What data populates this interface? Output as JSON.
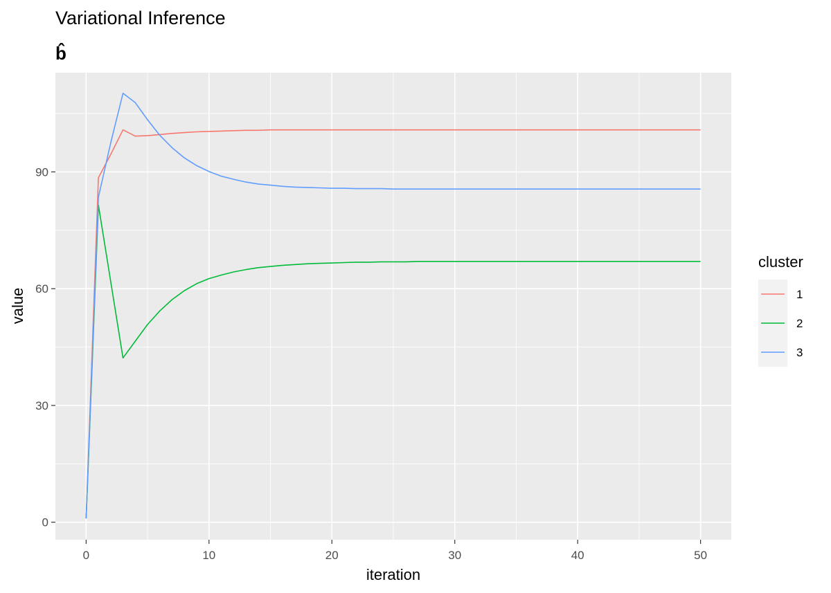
{
  "chart_data": {
    "type": "line",
    "title": "Variational Inference",
    "subtitle": "b̂",
    "xlabel": "iteration",
    "ylabel": "value",
    "xlim": [
      -2.5,
      52.5
    ],
    "ylim": [
      -4.5,
      115.5
    ],
    "x_ticks": [
      0,
      10,
      20,
      30,
      40,
      50
    ],
    "y_ticks": [
      0,
      30,
      60,
      90
    ],
    "x_tick_labels": [
      "0",
      "10",
      "20",
      "30",
      "40",
      "50"
    ],
    "y_tick_labels": [
      "0",
      "30",
      "60",
      "90"
    ],
    "grid": true,
    "legend": {
      "title": "cluster",
      "placement": "right"
    },
    "series": [
      {
        "name": "1",
        "color": "#F8766D",
        "x": [
          0,
          1,
          2,
          3,
          4,
          5,
          6,
          7,
          8,
          9,
          10,
          11,
          12,
          13,
          14,
          15,
          16,
          17,
          18,
          19,
          20,
          21,
          22,
          23,
          24,
          25,
          26,
          27,
          28,
          29,
          30,
          31,
          32,
          33,
          34,
          35,
          36,
          37,
          38,
          39,
          40,
          41,
          42,
          43,
          44,
          45,
          46,
          47,
          48,
          49,
          50
        ],
        "values": [
          1,
          88.5,
          94.5,
          100.8,
          99.2,
          99.3,
          99.6,
          99.9,
          100.1,
          100.3,
          100.4,
          100.5,
          100.6,
          100.7,
          100.7,
          100.8,
          100.8,
          100.8,
          100.8,
          100.8,
          100.8,
          100.8,
          100.8,
          100.8,
          100.8,
          100.8,
          100.8,
          100.8,
          100.8,
          100.8,
          100.8,
          100.8,
          100.8,
          100.8,
          100.8,
          100.8,
          100.8,
          100.8,
          100.8,
          100.8,
          100.8,
          100.8,
          100.8,
          100.8,
          100.8,
          100.8,
          100.8,
          100.8,
          100.8,
          100.8,
          100.8
        ]
      },
      {
        "name": "2",
        "color": "#00BA38",
        "x": [
          0,
          1,
          2,
          3,
          4,
          5,
          6,
          7,
          8,
          9,
          10,
          11,
          12,
          13,
          14,
          15,
          16,
          17,
          18,
          19,
          20,
          21,
          22,
          23,
          24,
          25,
          26,
          27,
          28,
          29,
          30,
          31,
          32,
          33,
          34,
          35,
          36,
          37,
          38,
          39,
          40,
          41,
          42,
          43,
          44,
          45,
          46,
          47,
          48,
          49,
          50
        ],
        "values": [
          1,
          81.5,
          61.8,
          42.2,
          46.5,
          50.8,
          54.3,
          57.2,
          59.5,
          61.3,
          62.6,
          63.5,
          64.3,
          64.9,
          65.4,
          65.7,
          66.0,
          66.2,
          66.4,
          66.5,
          66.6,
          66.7,
          66.8,
          66.8,
          66.9,
          66.9,
          66.9,
          67.0,
          67.0,
          67.0,
          67.0,
          67.0,
          67.0,
          67.0,
          67.0,
          67.0,
          67.0,
          67.0,
          67.0,
          67.0,
          67.0,
          67.0,
          67.0,
          67.0,
          67.0,
          67.0,
          67.0,
          67.0,
          67.0,
          67.0,
          67.0
        ]
      },
      {
        "name": "3",
        "color": "#619CFF",
        "x": [
          0,
          1,
          2,
          3,
          4,
          5,
          6,
          7,
          8,
          9,
          10,
          11,
          12,
          13,
          14,
          15,
          16,
          17,
          18,
          19,
          20,
          21,
          22,
          23,
          24,
          25,
          26,
          27,
          28,
          29,
          30,
          31,
          32,
          33,
          34,
          35,
          36,
          37,
          38,
          39,
          40,
          41,
          42,
          43,
          44,
          45,
          46,
          47,
          48,
          49,
          50
        ],
        "values": [
          1,
          83.5,
          97.5,
          110.2,
          107.8,
          103.4,
          99.4,
          96.2,
          93.6,
          91.6,
          90.1,
          88.9,
          88.1,
          87.4,
          86.9,
          86.6,
          86.3,
          86.1,
          86.0,
          85.9,
          85.8,
          85.8,
          85.7,
          85.7,
          85.7,
          85.6,
          85.6,
          85.6,
          85.6,
          85.6,
          85.6,
          85.6,
          85.6,
          85.6,
          85.6,
          85.6,
          85.6,
          85.6,
          85.6,
          85.6,
          85.6,
          85.6,
          85.6,
          85.6,
          85.6,
          85.6,
          85.6,
          85.6,
          85.6,
          85.6,
          85.6
        ]
      }
    ]
  }
}
